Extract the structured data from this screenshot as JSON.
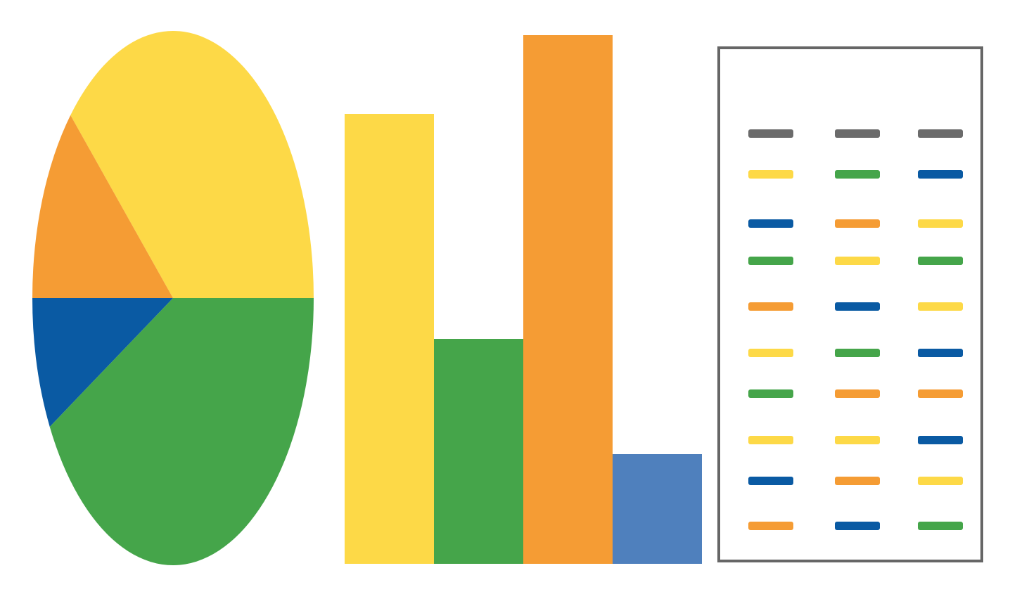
{
  "colors": {
    "blue": "#0a5aa3",
    "orange": "#f59c34",
    "yellow": "#fdd947",
    "green": "#45a54a",
    "lightblue": "#4f80bd",
    "gray": "#6b6b6b",
    "border": "#666666"
  },
  "chart_data": [
    {
      "type": "pie",
      "values": [
        38,
        12,
        8,
        42
      ],
      "colors": [
        "#fdd947",
        "#f59c34",
        "#0a5aa3",
        "#45a54a"
      ],
      "start_angle_deg": 0,
      "direction": "counterclockwise"
    },
    {
      "type": "bar",
      "values": [
        80,
        40,
        94,
        19.5
      ],
      "colors": [
        "#fdd947",
        "#45a54a",
        "#f59c34",
        "#4f80bd"
      ],
      "ylim": [
        0,
        100
      ],
      "grid": false
    },
    {
      "type": "table",
      "rows": [
        [
          "gray",
          "gray",
          "gray"
        ],
        [
          "yellow",
          "green",
          "blue"
        ],
        [
          "blue",
          "orange",
          "yellow"
        ],
        [
          "green",
          "yellow",
          "green"
        ],
        [
          "orange",
          "blue",
          "yellow"
        ],
        [
          "yellow",
          "green",
          "blue"
        ],
        [
          "green",
          "orange",
          "orange"
        ],
        [
          "yellow",
          "yellow",
          "blue"
        ],
        [
          "blue",
          "orange",
          "yellow"
        ],
        [
          "orange",
          "blue",
          "green"
        ]
      ]
    }
  ]
}
